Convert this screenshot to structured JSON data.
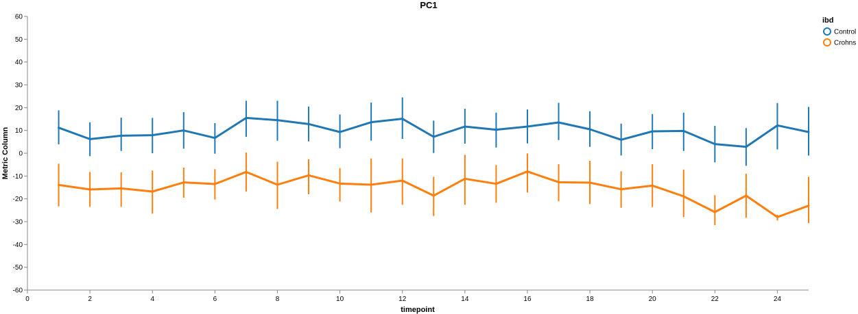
{
  "chart_data": {
    "type": "line",
    "title": "PC1",
    "xlabel": "timepoint",
    "ylabel": "Metric Column",
    "xlim": [
      0,
      25
    ],
    "ylim": [
      -60,
      60
    ],
    "x_ticks": [
      0,
      2,
      4,
      6,
      8,
      10,
      12,
      14,
      16,
      18,
      20,
      22,
      24
    ],
    "y_ticks": [
      60,
      50,
      40,
      30,
      20,
      10,
      0,
      -10,
      -20,
      -30,
      -40,
      -50,
      -60
    ],
    "grid": false,
    "legend": {
      "title": "ibd",
      "position": "top-right"
    },
    "x": [
      1,
      2,
      3,
      4,
      5,
      6,
      7,
      8,
      9,
      10,
      11,
      12,
      13,
      14,
      15,
      16,
      17,
      18,
      19,
      20,
      21,
      22,
      23,
      24,
      25
    ],
    "series": [
      {
        "name": "Control",
        "color": "#1f77b4",
        "values": [
          11.2,
          6.2,
          7.7,
          7.9,
          10.0,
          6.7,
          15.5,
          14.5,
          12.8,
          9.3,
          13.6,
          15.1,
          7.2,
          11.7,
          10.3,
          11.7,
          13.5,
          10.5,
          5.9,
          9.6,
          9.8,
          4.0,
          2.8,
          12.2,
          9.3
        ],
        "err_low": [
          3.9,
          -1.3,
          1.0,
          0.0,
          2.0,
          -0.2,
          7.2,
          5.5,
          5.2,
          2.2,
          5.5,
          6.3,
          0.1,
          4.2,
          2.5,
          4.3,
          5.8,
          2.8,
          -1.0,
          1.8,
          1.0,
          -4.0,
          -5.5,
          1.7,
          -1.0
        ],
        "err_high": [
          18.8,
          13.5,
          15.6,
          15.5,
          18.0,
          13.2,
          23.0,
          23.0,
          20.5,
          17.0,
          22.2,
          24.5,
          14.3,
          19.5,
          17.8,
          19.2,
          22.1,
          18.4,
          13.0,
          17.2,
          17.8,
          12.0,
          11.0,
          22.0,
          20.3
        ]
      },
      {
        "name": "Crohns",
        "color": "#ff7f0e",
        "values": [
          -13.9,
          -15.9,
          -15.4,
          -16.8,
          -12.8,
          -13.5,
          -8.2,
          -13.8,
          -9.7,
          -13.3,
          -13.8,
          -12.0,
          -18.6,
          -11.2,
          -13.4,
          -8.0,
          -12.7,
          -12.9,
          -15.8,
          -14.2,
          -18.9,
          -25.8,
          -18.6,
          -28.0,
          -23.0
        ],
        "err_low": [
          -23.3,
          -23.5,
          -23.5,
          -26.5,
          -19.5,
          -20.3,
          -16.8,
          -24.4,
          -18.0,
          -21.2,
          -26.0,
          -22.6,
          -27.5,
          -22.6,
          -21.7,
          -17.2,
          -21.1,
          -22.3,
          -23.9,
          -23.6,
          -28.0,
          -31.5,
          -28.3,
          -29.5,
          -30.6
        ],
        "err_high": [
          -4.6,
          -8.2,
          -8.4,
          -7.6,
          -6.3,
          -7.0,
          0.3,
          -3.7,
          -2.6,
          -6.5,
          -2.3,
          -2.3,
          -10.3,
          -0.7,
          -5.2,
          -0.1,
          -4.8,
          -3.3,
          -7.9,
          -4.8,
          -7.2,
          -18.4,
          -9.0,
          -27.0,
          -10.3
        ]
      }
    ]
  }
}
